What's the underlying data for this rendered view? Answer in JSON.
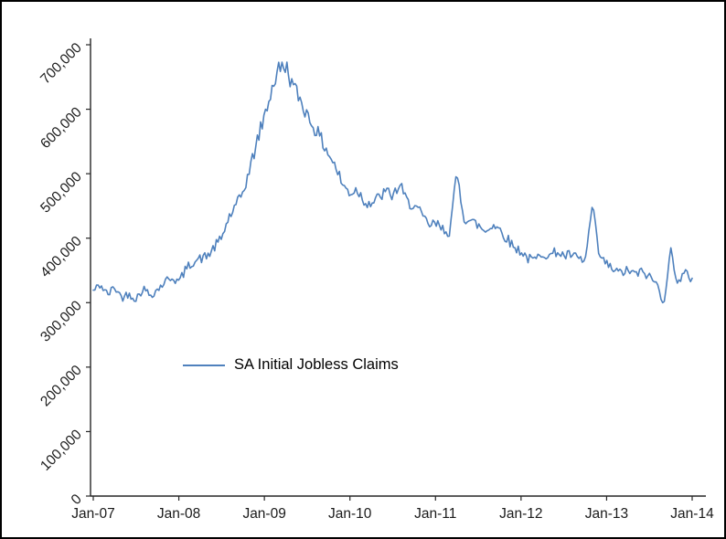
{
  "chart_data": {
    "type": "line",
    "title": "",
    "legend": "SA Initial Jobless Claims",
    "series": [
      {
        "name": "SA Initial Jobless Claims",
        "frequency": "weekly",
        "x_unit": "months since Jan-2007",
        "monthly_anchor_values": [
          318000,
          328000,
          312000,
          324000,
          308000,
          314000,
          306000,
          322000,
          312000,
          320000,
          332000,
          340000,
          332000,
          352000,
          364000,
          368000,
          372000,
          386000,
          400000,
          432000,
          448000,
          472000,
          508000,
          552000,
          588000,
          630000,
          662000,
          668000,
          636000,
          616000,
          592000,
          572000,
          552000,
          532000,
          510000,
          482000,
          470000,
          476000,
          458000,
          454000,
          462000,
          472000,
          466000,
          482000,
          456000,
          452000,
          436000,
          420000,
          422000,
          414000,
          410000,
          500000,
          432000,
          426000,
          420000,
          410000,
          422000,
          414000,
          400000,
          386000,
          380000,
          368000,
          366000,
          378000,
          372000,
          380000,
          372000,
          374000,
          368000,
          364000,
          450000,
          370000,
          360000,
          350000,
          346000,
          350000,
          344000,
          348000,
          340000,
          330000,
          300000,
          380000,
          330000,
          346000,
          336000
        ]
      }
    ],
    "xtick_labels": [
      "Jan-07",
      "Jan-08",
      "Jan-09",
      "Jan-10",
      "Jan-11",
      "Jan-12",
      "Jan-13",
      "Jan-14"
    ],
    "ytick_values": [
      0,
      100000,
      200000,
      300000,
      400000,
      500000,
      600000,
      700000
    ],
    "ytick_labels": [
      "0",
      "100,000",
      "200,000",
      "300,000",
      "400,000",
      "500,000",
      "600,000",
      "700,000"
    ],
    "ylim": [
      0,
      700000
    ],
    "xlim_months": [
      0,
      84
    ],
    "grid": false,
    "legend_position": "inside-left-center",
    "line_color": "#4F81BD",
    "axis_color": "#262626",
    "tick_label_color": "#1a1a1a",
    "weekly_points": 366,
    "noise_ratio": 0.021,
    "noise_seed": 42
  }
}
